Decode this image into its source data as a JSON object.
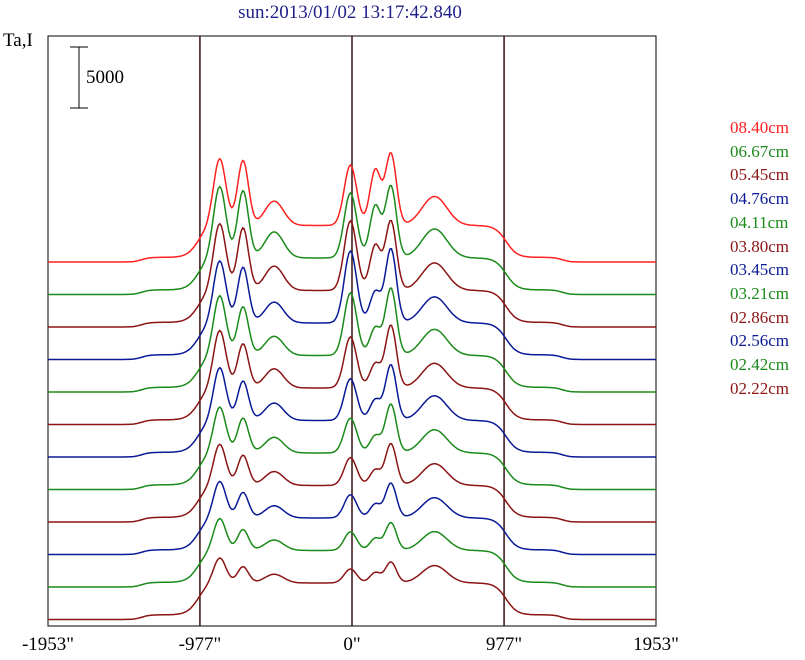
{
  "chart_data": {
    "type": "line",
    "title": "sun:2013/01/02 13:17:42.840",
    "ylabel": "Ta,I",
    "scale_bar_label": "5000",
    "x_tick_labels": [
      "-1953\"",
      "-977\"",
      "0\"",
      "977\"",
      "1953\""
    ],
    "x_ticks": [
      -1953,
      -977,
      0,
      977,
      1953
    ],
    "xlim": [
      -1953,
      1953
    ],
    "vertical_markers": [
      -977,
      0,
      977
    ],
    "grid": false,
    "legend_placement": "right",
    "colors": {
      "red": "#ff2020",
      "green": "#1a8a1a",
      "darkred": "#8b1414",
      "blue": "#0a1a96"
    },
    "series": [
      {
        "name": "08.40cm",
        "color": "#ff2020",
        "offset": 0,
        "peaks": [
          1.45,
          1.4,
          0.7,
          1.3,
          1.6,
          1.55,
          1.0
        ]
      },
      {
        "name": "06.67cm",
        "color": "#1a8a1a",
        "offset": 1,
        "peaks": [
          1.55,
          1.45,
          0.75,
          1.4,
          1.5,
          1.55,
          1.0
        ]
      },
      {
        "name": "05.45cm",
        "color": "#8b1414",
        "offset": 2,
        "peaks": [
          1.45,
          1.35,
          0.7,
          1.5,
          1.3,
          1.5,
          0.95
        ]
      },
      {
        "name": "04.76cm",
        "color": "#0a1a96",
        "offset": 3,
        "peaks": [
          1.35,
          1.2,
          0.6,
          1.55,
          0.9,
          1.6,
          0.9
        ]
      },
      {
        "name": "04.11cm",
        "color": "#1a8a1a",
        "offset": 4,
        "peaks": [
          1.3,
          1.05,
          0.55,
          1.35,
          0.8,
          1.45,
          0.9
        ]
      },
      {
        "name": "03.80cm",
        "color": "#8b1414",
        "offset": 5,
        "peaks": [
          1.25,
          0.95,
          0.55,
          1.1,
          0.7,
          1.35,
          0.85
        ]
      },
      {
        "name": "03.45cm",
        "color": "#0a1a96",
        "offset": 6,
        "peaks": [
          1.15,
          0.85,
          0.5,
          0.9,
          0.6,
          1.2,
          0.85
        ]
      },
      {
        "name": "03.21cm",
        "color": "#1a8a1a",
        "offset": 7,
        "peaks": [
          1.0,
          0.75,
          0.45,
          0.75,
          0.5,
          1.05,
          0.8
        ]
      },
      {
        "name": "02.86cm",
        "color": "#8b1414",
        "offset": 8,
        "peaks": [
          0.9,
          0.65,
          0.4,
          0.6,
          0.45,
          0.9,
          0.75
        ]
      },
      {
        "name": "02.56cm",
        "color": "#0a1a96",
        "offset": 9,
        "peaks": [
          0.8,
          0.55,
          0.35,
          0.5,
          0.4,
          0.75,
          0.7
        ]
      },
      {
        "name": "02.42cm",
        "color": "#1a8a1a",
        "offset": 10,
        "peaks": [
          0.7,
          0.45,
          0.3,
          0.4,
          0.35,
          0.6,
          0.65
        ]
      },
      {
        "name": "02.22cm",
        "color": "#8b1414",
        "offset": 11,
        "peaks": [
          0.55,
          0.35,
          0.25,
          0.3,
          0.3,
          0.45,
          0.6
        ]
      }
    ]
  }
}
